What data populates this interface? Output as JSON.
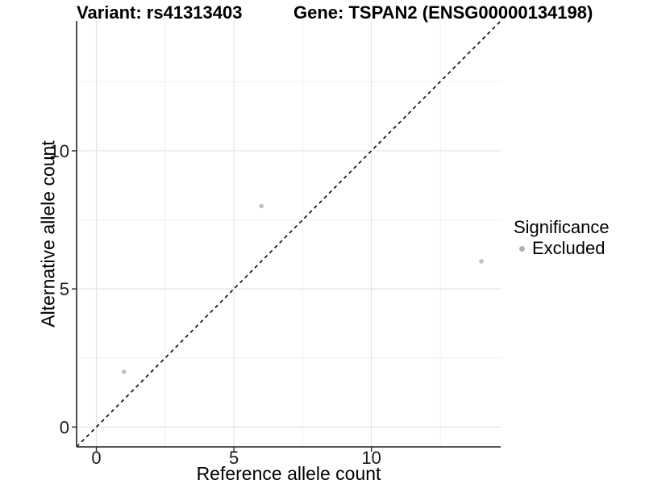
{
  "chart_data": {
    "type": "scatter",
    "titles": {
      "variant": "Variant: rs41313403",
      "gene": "Gene: TSPAN2 (ENSG00000134198)"
    },
    "xlabel": "Reference allele count",
    "ylabel": "Alternative allele count",
    "axis_domain": [
      -0.72,
      14.7
    ],
    "xticks": {
      "values": [
        0,
        5,
        10
      ],
      "labels": [
        "0",
        "5",
        "10"
      ]
    },
    "yticks": {
      "values": [
        0,
        5,
        10
      ],
      "labels": [
        "0",
        "5",
        "10"
      ]
    },
    "minor_ticks": [
      2.5,
      7.5,
      12.5
    ],
    "grid": {
      "major": true,
      "minor": true
    },
    "series": [
      {
        "name": "Excluded",
        "color": "#c1c1c1",
        "points": [
          [
            1,
            2
          ],
          [
            6,
            8
          ],
          [
            14,
            6
          ]
        ]
      }
    ],
    "identity_line": {
      "slope": 1,
      "intercept": 0,
      "style": "dashed",
      "color": "#111111"
    },
    "legend": {
      "title": "Significance",
      "position": "right",
      "items": [
        {
          "label": "Excluded",
          "color": "#b0b0b0"
        }
      ]
    },
    "colors": {
      "background": "#ffffff",
      "grid_major": "#e4e4e4",
      "grid_minor": "#f1f1f1",
      "axis_line": "#3d3d3d",
      "tick_mark": "#333333",
      "tick_text": "#1a1a1a"
    }
  }
}
